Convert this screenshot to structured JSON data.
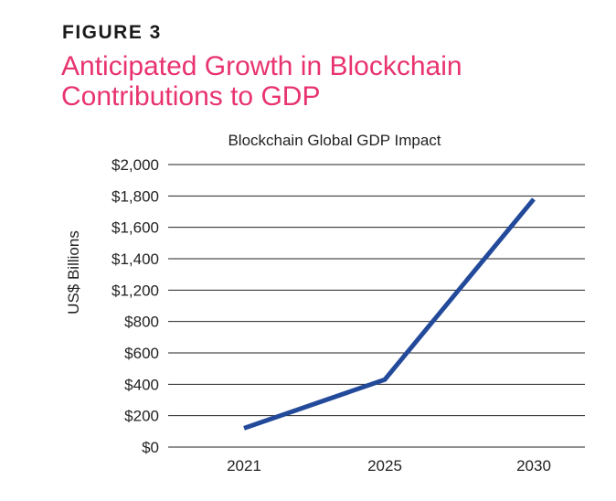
{
  "figure": {
    "label": "FIGURE 3",
    "title": "Anticipated Growth in Blockchain Contributions to GDP"
  },
  "colors": {
    "accent": "#e8336e",
    "line": "#234a9a",
    "grid": "#222222",
    "text": "#222222"
  },
  "chart_data": {
    "type": "line",
    "title": "Blockchain Global GDP Impact",
    "xlabel": "",
    "ylabel": "US$ Billions",
    "categories": [
      "2021",
      "2025",
      "2030"
    ],
    "series": [
      {
        "name": "Blockchain Global GDP Impact",
        "values": [
          120,
          430,
          1780
        ]
      }
    ],
    "y_ticks": [
      {
        "label": "$0",
        "pos": 0
      },
      {
        "label": "$200",
        "pos": 1
      },
      {
        "label": "$400",
        "pos": 2
      },
      {
        "label": "$600",
        "pos": 3
      },
      {
        "label": "$800",
        "pos": 4
      },
      {
        "label": "$1,200",
        "pos": 5
      },
      {
        "label": "$1,400",
        "pos": 6
      },
      {
        "label": "$1,600",
        "pos": 7
      },
      {
        "label": "$1,800",
        "pos": 8
      },
      {
        "label": "$2,000",
        "pos": 9
      }
    ],
    "ylim": [
      0,
      2000
    ],
    "grid": true,
    "legend": "none"
  }
}
